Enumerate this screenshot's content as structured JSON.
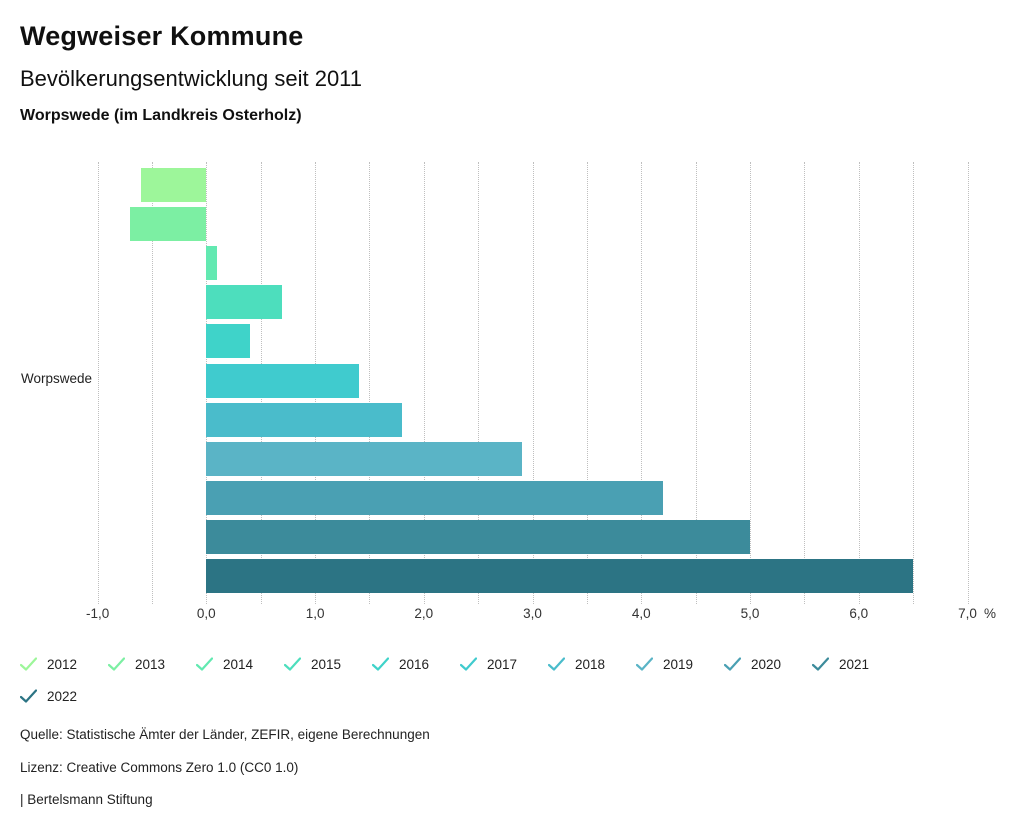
{
  "header": {
    "title": "Wegweiser Kommune",
    "subtitle": "Bevölkerungsentwicklung seit 2011",
    "location": "Worpswede (im Landkreis Osterholz)"
  },
  "chart_data": {
    "type": "bar",
    "orientation": "horizontal",
    "category": "Worpswede",
    "unit_label": "%",
    "series": [
      {
        "name": "2012",
        "value": -0.6,
        "color": "#9df69a"
      },
      {
        "name": "2013",
        "value": -0.7,
        "color": "#7cefa3"
      },
      {
        "name": "2014",
        "value": 0.1,
        "color": "#62e9b1"
      },
      {
        "name": "2015",
        "value": 0.7,
        "color": "#4ddebd"
      },
      {
        "name": "2016",
        "value": 0.4,
        "color": "#3fd3c9"
      },
      {
        "name": "2017",
        "value": 1.4,
        "color": "#40cbce"
      },
      {
        "name": "2018",
        "value": 1.8,
        "color": "#4abccb"
      },
      {
        "name": "2019",
        "value": 2.9,
        "color": "#5ab4c6"
      },
      {
        "name": "2020",
        "value": 4.2,
        "color": "#4aa0b3"
      },
      {
        "name": "2021",
        "value": 5.0,
        "color": "#3c8b9b"
      },
      {
        "name": "2022",
        "value": 6.5,
        "color": "#2c7484"
      }
    ],
    "xlim": [
      -1.0,
      7.0
    ],
    "gridline_step": 0.5,
    "grid": true,
    "x_tick_values": [
      -1,
      0,
      1,
      2,
      3,
      4,
      5,
      6,
      7
    ],
    "x_tick_labels": [
      "-1,0",
      "0,0",
      "1,0",
      "2,0",
      "3,0",
      "4,0",
      "5,0",
      "6,0",
      "7,0"
    ],
    "legend_position": "bottom",
    "legend_rows": [
      10,
      1
    ]
  },
  "footer": {
    "source": "Quelle: Statistische Ämter der Länder, ZEFIR, eigene Berechnungen",
    "license": "Lizenz: Creative Commons Zero 1.0 (CC0 1.0)",
    "brand": "| Bertelsmann Stiftung"
  }
}
